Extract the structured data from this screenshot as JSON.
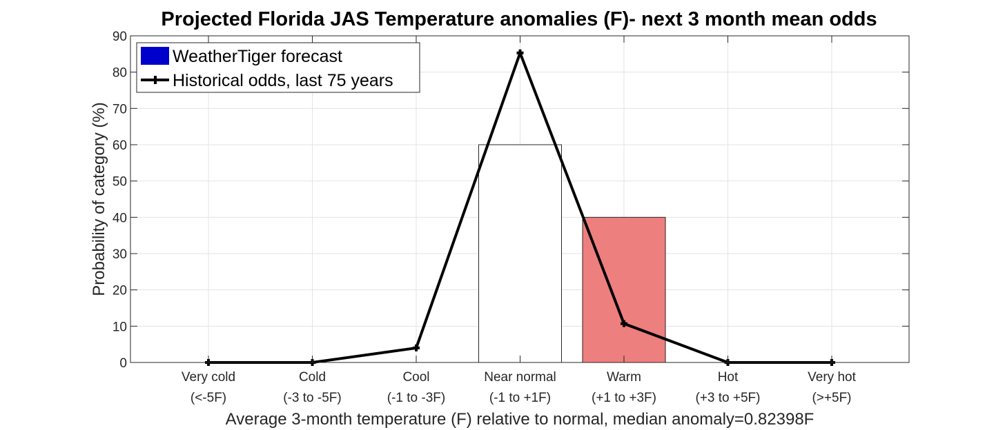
{
  "chart_data": {
    "type": "bar",
    "title": "Projected Florida JAS Temperature anomalies (F)- next 3 month mean odds",
    "xlabel": "Average 3-month temperature (F) relative to normal, median anomaly=0.82398F",
    "ylabel": "Probability of category (%)",
    "ylim": [
      0,
      90
    ],
    "yticks": [
      0,
      10,
      20,
      30,
      40,
      50,
      60,
      70,
      80,
      90
    ],
    "grid": true,
    "legend_position": "top-left",
    "categories": [
      {
        "name": "Very cold",
        "range": "(<-5F)"
      },
      {
        "name": "Cold",
        "range": "(-3 to -5F)"
      },
      {
        "name": "Cool",
        "range": "(-1 to -3F)"
      },
      {
        "name": "Near normal",
        "range": "(-1 to +1F)"
      },
      {
        "name": "Warm",
        "range": "(+1 to +3F)"
      },
      {
        "name": "Hot",
        "range": "(+3 to +5F)"
      },
      {
        "name": "Very hot",
        "range": "(>+5F)"
      }
    ],
    "series": [
      {
        "name": "WeatherTiger forecast",
        "kind": "bar",
        "values": [
          0,
          0,
          0,
          60,
          40,
          0,
          0
        ],
        "colors": [
          "#ffffff",
          "#ffffff",
          "#ffffff",
          "#ffffff",
          "#ee7f7f",
          "#ffffff",
          "#ffffff"
        ],
        "legend_color": "#0000cc"
      },
      {
        "name": "Historical odds, last 75 years",
        "kind": "line",
        "values": [
          0,
          0,
          4,
          85.3,
          10.7,
          0,
          0
        ],
        "color": "#000000"
      }
    ]
  }
}
